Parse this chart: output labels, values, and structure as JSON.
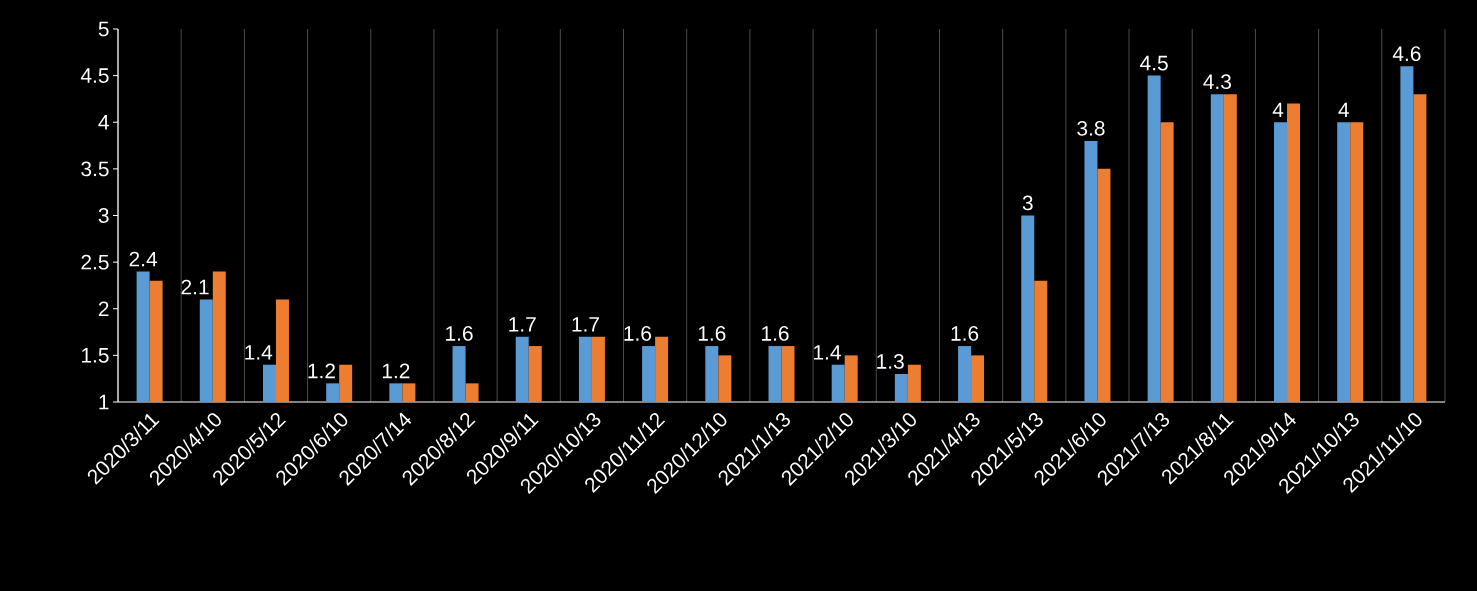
{
  "chart_data": {
    "type": "bar",
    "categories": [
      "2020/3/11",
      "2020/4/10",
      "2020/5/12",
      "2020/6/10",
      "2020/7/14",
      "2020/8/12",
      "2020/9/11",
      "2020/10/13",
      "2020/11/12",
      "2020/12/10",
      "2021/1/13",
      "2021/2/10",
      "2021/3/10",
      "2021/4/13",
      "2021/5/13",
      "2021/6/10",
      "2021/7/13",
      "2021/8/11",
      "2021/9/14",
      "2021/10/13",
      "2021/11/10"
    ],
    "series": [
      {
        "color": "#5b9bd5",
        "values": [
          2.4,
          2.1,
          1.4,
          1.2,
          1.2,
          1.6,
          1.7,
          1.7,
          1.6,
          1.6,
          1.6,
          1.4,
          1.3,
          1.6,
          3,
          3.8,
          4.5,
          4.3,
          4,
          4,
          4.6
        ],
        "value_labels": [
          "2.4",
          "2.1",
          "1.4",
          "1.2",
          "1.2",
          "1.6",
          "1.7",
          "1.7",
          "1.6",
          "1.6",
          "1.6",
          "1.4",
          "1.3",
          "1.6",
          "3",
          "3.8",
          "4.5",
          "4.3",
          "4",
          "4",
          "4.6"
        ]
      },
      {
        "color": "#ed7d31",
        "values": [
          2.3,
          2.4,
          2.1,
          1.4,
          1.2,
          1.2,
          1.6,
          1.7,
          1.7,
          1.5,
          1.6,
          1.5,
          1.4,
          1.5,
          2.3,
          3.5,
          4.0,
          4.3,
          4.2,
          4.0,
          4.3
        ]
      }
    ],
    "ylim": [
      1,
      5
    ],
    "yticks": [
      1,
      1.5,
      2,
      2.5,
      3,
      3.5,
      4,
      4.5,
      5
    ],
    "grid": "x"
  }
}
